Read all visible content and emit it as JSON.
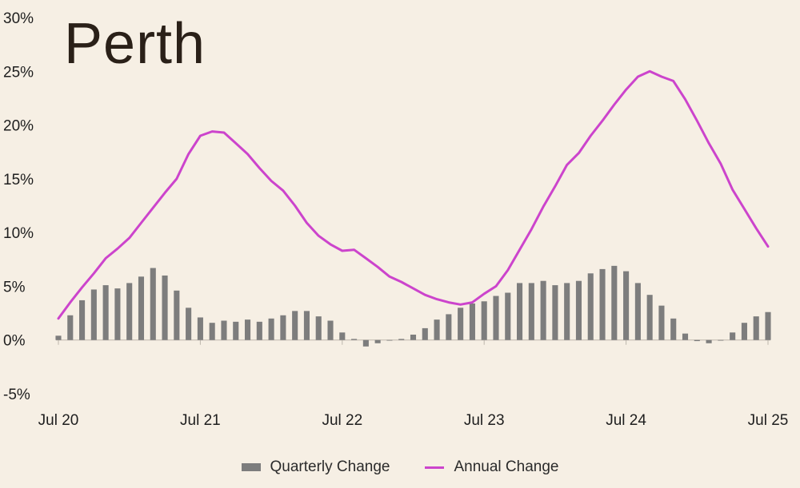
{
  "chart_data": {
    "type": "bar+line",
    "title": "Perth",
    "y_ticks": [
      "30%",
      "25%",
      "20%",
      "15%",
      "10%",
      "5%",
      "0%",
      "-5%"
    ],
    "y_tick_values": [
      30,
      25,
      20,
      15,
      10,
      5,
      0,
      -5
    ],
    "ylim": [
      -5,
      30
    ],
    "x_ticks": [
      "Jul 20",
      "Jul 21",
      "Jul 22",
      "Jul 23",
      "Jul 24",
      "Jul 25"
    ],
    "x_tick_positions": [
      0,
      12,
      24,
      36,
      48,
      60
    ],
    "xlim": [
      0,
      60
    ],
    "legend_position": "bottom",
    "colors": {
      "quarterly": "#7d7d7d",
      "annual": "#cc44cc",
      "background": "#f6efe4"
    },
    "series": [
      {
        "name": "Quarterly Change",
        "kind": "bar",
        "values": [
          0.4,
          2.3,
          3.7,
          4.7,
          5.1,
          4.8,
          5.3,
          5.9,
          6.7,
          6.0,
          4.6,
          3.0,
          2.1,
          1.6,
          1.8,
          1.7,
          1.9,
          1.7,
          2.0,
          2.3,
          2.7,
          2.7,
          2.2,
          1.8,
          0.7,
          0.1,
          -0.6,
          -0.3,
          0.0,
          0.1,
          0.5,
          1.1,
          1.9,
          2.4,
          3.0,
          3.4,
          3.6,
          4.1,
          4.4,
          5.3,
          5.3,
          5.5,
          5.1,
          5.3,
          5.5,
          6.2,
          6.6,
          6.9,
          6.4,
          5.3,
          4.2,
          3.2,
          2.0,
          0.6,
          -0.1,
          -0.3,
          0.0,
          0.7,
          1.6,
          2.2,
          2.6
        ]
      },
      {
        "name": "Annual Change",
        "kind": "line",
        "values": [
          2.0,
          3.5,
          4.9,
          6.2,
          7.6,
          8.5,
          9.5,
          10.9,
          12.3,
          13.7,
          15.0,
          17.3,
          19.0,
          19.4,
          19.3,
          18.3,
          17.3,
          16.0,
          14.8,
          13.9,
          12.5,
          10.9,
          9.7,
          8.9,
          8.3,
          8.4,
          7.6,
          6.8,
          5.9,
          5.4,
          4.8,
          4.2,
          3.8,
          3.5,
          3.3,
          3.5,
          4.3,
          5.0,
          6.5,
          8.4,
          10.3,
          12.4,
          14.3,
          16.3,
          17.4,
          19.0,
          20.4,
          21.9,
          23.3,
          24.5,
          25.0,
          24.5,
          24.1,
          22.4,
          20.4,
          18.3,
          16.4,
          14.0,
          12.2,
          10.4,
          8.7
        ]
      }
    ]
  },
  "legend": {
    "quarterly_label": "Quarterly Change",
    "annual_label": "Annual Change"
  }
}
